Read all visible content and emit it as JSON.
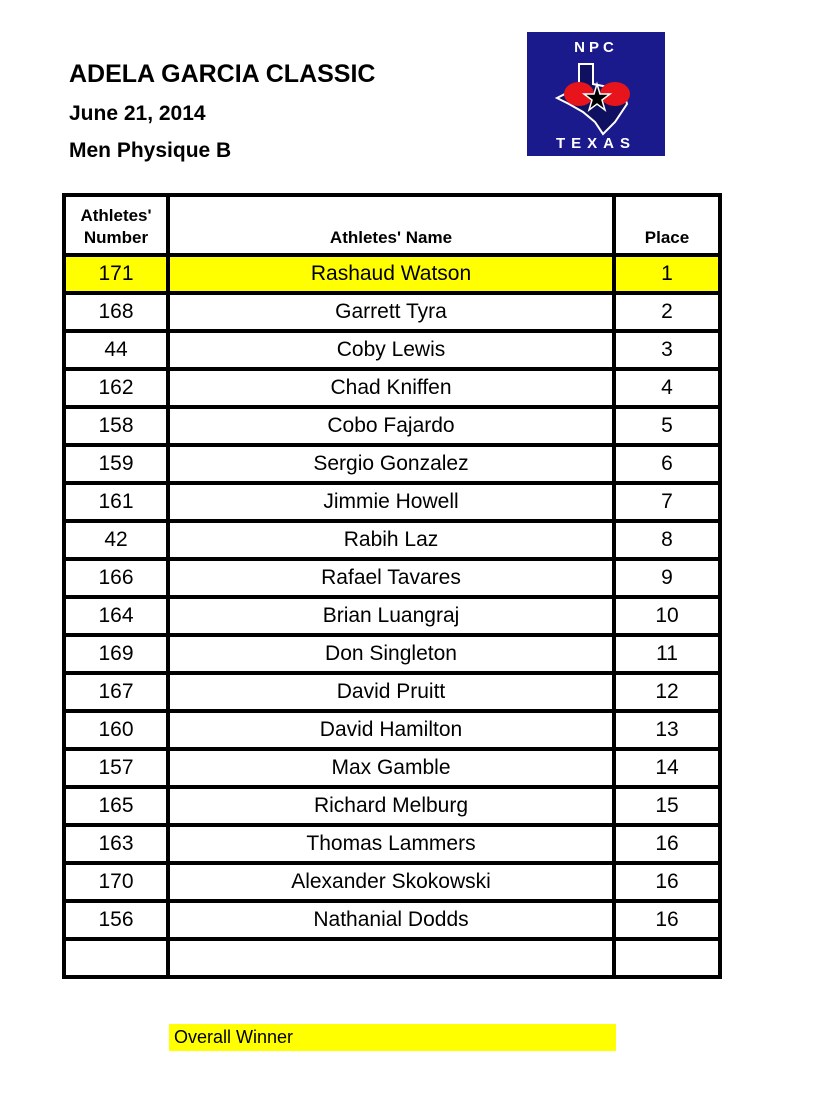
{
  "header": {
    "title": "ADELA GARCIA CLASSIC",
    "date": "June 21, 2014",
    "class": "Men Physique B"
  },
  "logo": {
    "top_text": "NPC",
    "bottom_text": "TEXAS",
    "background": "#1a1a8c"
  },
  "table": {
    "columns": [
      "Athletes' Number",
      "Athletes' Name",
      "Place"
    ],
    "column1_lines": [
      "Athletes'",
      "Number"
    ],
    "rows": [
      {
        "number": "171",
        "name": "Rashaud Watson",
        "place": "1",
        "highlight": true
      },
      {
        "number": "168",
        "name": "Garrett Tyra",
        "place": "2"
      },
      {
        "number": "44",
        "name": "Coby Lewis",
        "place": "3"
      },
      {
        "number": "162",
        "name": "Chad Kniffen",
        "place": "4"
      },
      {
        "number": "158",
        "name": "Cobo Fajardo",
        "place": "5"
      },
      {
        "number": "159",
        "name": "Sergio Gonzalez",
        "place": "6"
      },
      {
        "number": "161",
        "name": "Jimmie Howell",
        "place": "7"
      },
      {
        "number": "42",
        "name": "Rabih Laz",
        "place": "8"
      },
      {
        "number": "166",
        "name": "Rafael Tavares",
        "place": "9"
      },
      {
        "number": "164",
        "name": "Brian Luangraj",
        "place": "10"
      },
      {
        "number": "169",
        "name": "Don Singleton",
        "place": "11"
      },
      {
        "number": "167",
        "name": "David Pruitt",
        "place": "12"
      },
      {
        "number": "160",
        "name": "David Hamilton",
        "place": "13"
      },
      {
        "number": "157",
        "name": "Max Gamble",
        "place": "14"
      },
      {
        "number": "165",
        "name": "Richard Melburg",
        "place": "15"
      },
      {
        "number": "163",
        "name": "Thomas Lammers",
        "place": "16"
      },
      {
        "number": "170",
        "name": "Alexander Skokowski",
        "place": "16"
      },
      {
        "number": "156",
        "name": "Nathanial Dodds",
        "place": "16"
      },
      {
        "number": "",
        "name": "",
        "place": ""
      }
    ]
  },
  "legend": {
    "label": "Overall Winner",
    "color": "#ffff00"
  }
}
